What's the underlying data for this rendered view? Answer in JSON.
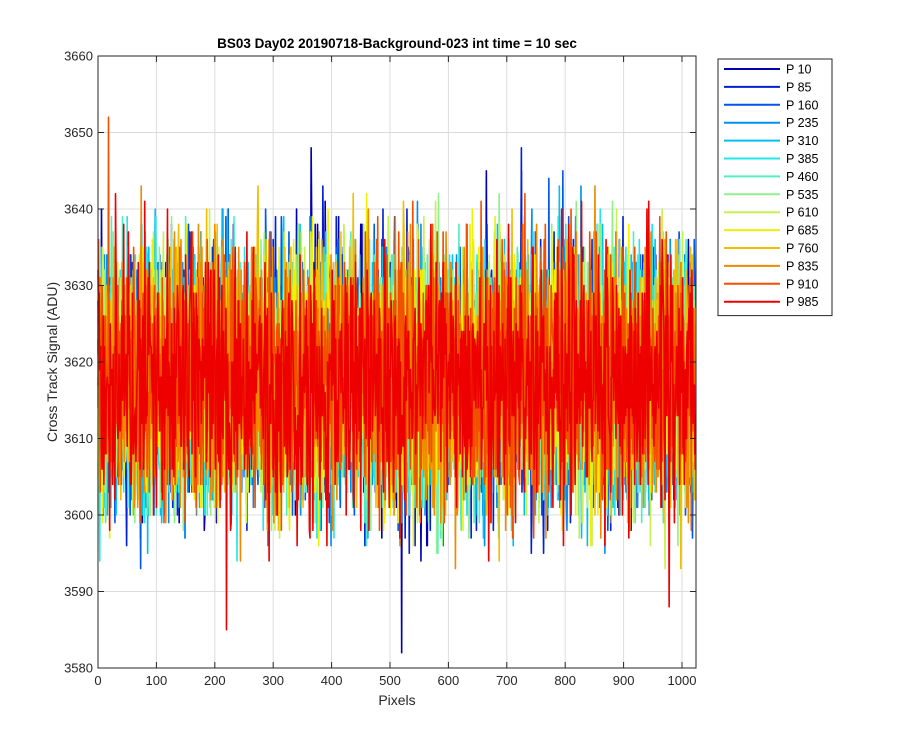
{
  "chart_data": {
    "type": "line",
    "title": "BS03 Day02 20190718-Background-023 int time = 10 sec",
    "xlabel": "Pixels",
    "ylabel": "Cross Track Signal (ADU)",
    "xlim": [
      0,
      1024
    ],
    "ylim": [
      3580,
      3660
    ],
    "xticks": [
      0,
      100,
      200,
      300,
      400,
      500,
      600,
      700,
      800,
      900,
      1000
    ],
    "yticks": [
      3580,
      3590,
      3600,
      3610,
      3620,
      3630,
      3640,
      3650,
      3660
    ],
    "grid": true,
    "legend_position": "outside-top-right",
    "series_summary": {
      "points_per_series": 1024,
      "typical_center": 3618,
      "typical_spread": "approximately 3600 to 3640",
      "extremes": [
        {
          "series": "P 910",
          "x": 18,
          "y": 3652
        },
        {
          "series": "P 10",
          "x": 520,
          "y": 3582
        },
        {
          "series": "P 985",
          "x": 220,
          "y": 3585
        },
        {
          "series": "P 985",
          "x": 978,
          "y": 3588
        },
        {
          "series": "P 10",
          "x": 365,
          "y": 3648
        },
        {
          "series": "P 85",
          "x": 725,
          "y": 3648
        }
      ]
    },
    "series": [
      {
        "name": "P 10",
        "color": "#0000b0"
      },
      {
        "name": "P 85",
        "color": "#0022d0"
      },
      {
        "name": "P 160",
        "color": "#0057e8"
      },
      {
        "name": "P 235",
        "color": "#0090f0"
      },
      {
        "name": "P 310",
        "color": "#00c0ee"
      },
      {
        "name": "P 385",
        "color": "#20e8e8"
      },
      {
        "name": "P 460",
        "color": "#50eec0"
      },
      {
        "name": "P 535",
        "color": "#8ff08c"
      },
      {
        "name": "P 610",
        "color": "#c8f050"
      },
      {
        "name": "P 685",
        "color": "#f0f000"
      },
      {
        "name": "P 760",
        "color": "#f0be00"
      },
      {
        "name": "P 835",
        "color": "#f08a00"
      },
      {
        "name": "P 910",
        "color": "#f05000"
      },
      {
        "name": "P 985",
        "color": "#ee0000"
      }
    ]
  }
}
